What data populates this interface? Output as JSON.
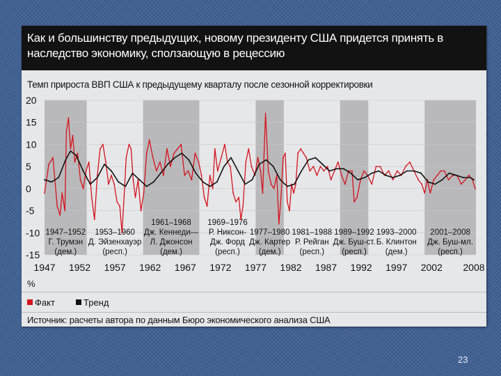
{
  "slide": {
    "title": "Как и большинству предыдущих, новому президенту США придется принять в наследство экономику, сползающую в рецессию",
    "page_number": "23",
    "unit": "%",
    "source": "Источник: расчеты автора по данным Бюро экономического анализа США"
  },
  "chart_data": {
    "type": "line",
    "title": "Темп прироста ВВП США к предыдущему кварталу после сезонной корректировки",
    "ylabel": "%",
    "ylim": [
      -15,
      20
    ],
    "xlim": [
      1947,
      2008
    ],
    "yticks": [
      "20",
      "15",
      "10",
      "5",
      "0",
      "-5",
      "-10",
      "-15"
    ],
    "xticks": [
      "1947",
      "1952",
      "1957",
      "1962",
      "1967",
      "1972",
      "1977",
      "1982",
      "1987",
      "1992",
      "1997",
      "2002",
      "2008"
    ],
    "legend": [
      {
        "name": "Факт",
        "color": "#d4131d"
      },
      {
        "name": "Тренд",
        "color": "#111111"
      }
    ],
    "presidencies": [
      {
        "years": "1947–1952",
        "name": "Г. Трумэн",
        "party": "(дем.)",
        "start": 1947,
        "end": 1953,
        "shaded": true
      },
      {
        "years": "1953–1960",
        "name": "Д. Эйзенхауэр",
        "party": "(респ.)",
        "start": 1953,
        "end": 1961,
        "shaded": false
      },
      {
        "years": "1961–1968",
        "name": "Дж. Кеннеди—",
        "name2": "Л. Джонсон",
        "party": "(дем.)",
        "start": 1961,
        "end": 1969,
        "shaded": true
      },
      {
        "years": "1969–1976",
        "name": "Р. Никсон-",
        "name2": "Дж. Форд",
        "party": "(респ.)",
        "start": 1969,
        "end": 1977,
        "shaded": false
      },
      {
        "years": "1977–1980",
        "name": "Дж. Картер",
        "party": "(дем.)",
        "start": 1977,
        "end": 1981,
        "shaded": true
      },
      {
        "years": "1981–1988",
        "name": "Р. Рейган",
        "party": "(респ.)",
        "start": 1981,
        "end": 1989,
        "shaded": false
      },
      {
        "years": "1989–1992",
        "name": "Дж. Буш-ст.",
        "party": "(респ.)",
        "start": 1989,
        "end": 1993,
        "shaded": true
      },
      {
        "years": "1993–2000",
        "name": "Б. Клинтон",
        "party": "(дем.)",
        "start": 1993,
        "end": 2001,
        "shaded": false
      },
      {
        "years": "2001–2008",
        "name": "Дж. Буш-мл.",
        "party": "(респ.)",
        "start": 2001,
        "end": 2008.5,
        "shaded": true
      }
    ],
    "series": [
      {
        "name": "Факт",
        "x": [
          1947.0,
          1947.6,
          1948.2,
          1948.8,
          1949.2,
          1949.5,
          1949.9,
          1950.1,
          1950.4,
          1950.7,
          1951.0,
          1951.3,
          1951.7,
          1952.1,
          1952.5,
          1952.9,
          1953.3,
          1953.7,
          1954.1,
          1954.5,
          1954.9,
          1955.3,
          1955.7,
          1956.1,
          1956.5,
          1956.9,
          1957.3,
          1957.7,
          1958.0,
          1958.3,
          1958.6,
          1959.0,
          1959.3,
          1959.6,
          1959.9,
          1960.3,
          1960.7,
          1961.1,
          1961.5,
          1961.9,
          1962.4,
          1962.9,
          1963.4,
          1963.9,
          1964.4,
          1964.9,
          1965.4,
          1965.9,
          1966.4,
          1966.9,
          1967.4,
          1967.9,
          1968.4,
          1968.9,
          1969.3,
          1969.7,
          1970.1,
          1970.5,
          1970.9,
          1971.2,
          1971.6,
          1972.1,
          1972.6,
          1973.0,
          1973.4,
          1973.8,
          1974.2,
          1974.6,
          1974.9,
          1975.2,
          1975.6,
          1976.0,
          1976.4,
          1976.9,
          1977.3,
          1977.7,
          1978.0,
          1978.4,
          1978.8,
          1979.2,
          1979.6,
          1980.0,
          1980.3,
          1980.6,
          1980.9,
          1981.2,
          1981.5,
          1981.8,
          1982.1,
          1982.4,
          1982.7,
          1983.0,
          1983.4,
          1983.8,
          1984.2,
          1984.7,
          1985.2,
          1985.7,
          1986.2,
          1986.7,
          1987.2,
          1987.7,
          1988.2,
          1988.7,
          1989.2,
          1989.7,
          1990.2,
          1990.7,
          1991.0,
          1991.4,
          1991.9,
          1992.4,
          1992.9,
          1993.5,
          1994.1,
          1994.7,
          1995.3,
          1995.9,
          1996.5,
          1997.1,
          1997.7,
          1998.3,
          1998.9,
          1999.5,
          2000.1,
          2000.6,
          2001.0,
          2001.4,
          2001.8,
          2002.3,
          2002.8,
          2003.3,
          2003.8,
          2004.4,
          2005.0,
          2005.6,
          2006.2,
          2006.8,
          2007.3,
          2007.8,
          2008.2
        ],
        "values": [
          -1,
          5.5,
          7,
          -4,
          -6,
          -1,
          -5,
          13,
          16,
          9,
          12,
          6,
          8,
          2,
          0,
          4,
          6,
          -2,
          -7,
          3,
          9,
          10,
          6,
          1,
          3,
          1,
          -3,
          -4,
          -10,
          -2,
          7,
          10,
          9,
          2,
          -2,
          2,
          -5,
          -1,
          8,
          11,
          7,
          4,
          6,
          3,
          9,
          5,
          8,
          9,
          10,
          3,
          4,
          2,
          8,
          6,
          3,
          -2,
          -4,
          3,
          0,
          9,
          4,
          7,
          10,
          6,
          5,
          -1,
          -3,
          -2,
          -7,
          -4,
          6,
          9,
          5,
          3,
          7,
          4,
          -1,
          17,
          4,
          1,
          0,
          3,
          -8,
          -2,
          7,
          8,
          -3,
          -5,
          1,
          -1,
          1,
          8,
          9,
          8,
          7,
          4,
          5,
          3,
          5,
          4,
          5,
          2,
          4,
          6,
          3,
          1,
          4,
          4,
          -3,
          -2,
          2,
          4,
          3,
          1,
          5,
          5,
          3,
          4,
          2,
          4,
          3,
          5,
          6,
          4,
          2,
          1,
          -1,
          2,
          -1,
          2,
          3,
          4,
          4,
          2,
          3,
          3,
          1,
          2,
          3,
          2,
          0
        ]
      },
      {
        "name": "Тренд",
        "x": [
          1947.0,
          1948.0,
          1949.0,
          1950.0,
          1950.7,
          1951.5,
          1952.5,
          1953.5,
          1954.5,
          1955.5,
          1956.5,
          1957.5,
          1958.5,
          1959.5,
          1960.5,
          1961.5,
          1962.5,
          1963.5,
          1964.5,
          1965.5,
          1966.5,
          1967.5,
          1968.5,
          1969.5,
          1970.5,
          1971.5,
          1972.5,
          1973.5,
          1974.5,
          1975.5,
          1976.5,
          1977.5,
          1978.5,
          1979.5,
          1980.5,
          1981.5,
          1982.5,
          1983.5,
          1984.5,
          1985.5,
          1986.5,
          1987.5,
          1988.5,
          1989.5,
          1990.5,
          1991.5,
          1992.5,
          1993.5,
          1994.5,
          1995.5,
          1996.5,
          1997.5,
          1998.5,
          1999.5,
          2000.5,
          2001.5,
          2002.5,
          2003.5,
          2004.5,
          2005.5,
          2006.5,
          2007.5,
          2008.0
        ],
        "values": [
          2,
          1.5,
          2.5,
          6.5,
          8.5,
          7.5,
          4,
          1,
          2.5,
          5.5,
          4,
          1.5,
          0.5,
          3.5,
          2,
          0.5,
          1.5,
          3.5,
          5.5,
          7,
          8,
          6.5,
          3.5,
          1.5,
          0.5,
          1.5,
          5,
          7,
          4,
          1,
          2,
          5.5,
          6.5,
          5,
          2,
          0.5,
          1,
          4,
          6.5,
          7,
          5.5,
          4,
          4.5,
          4.5,
          3.5,
          2,
          2.5,
          3.5,
          4,
          3,
          2.5,
          3,
          4,
          4,
          3.5,
          1.5,
          1,
          2,
          3.5,
          3,
          2.5,
          2.5,
          2
        ]
      }
    ]
  }
}
